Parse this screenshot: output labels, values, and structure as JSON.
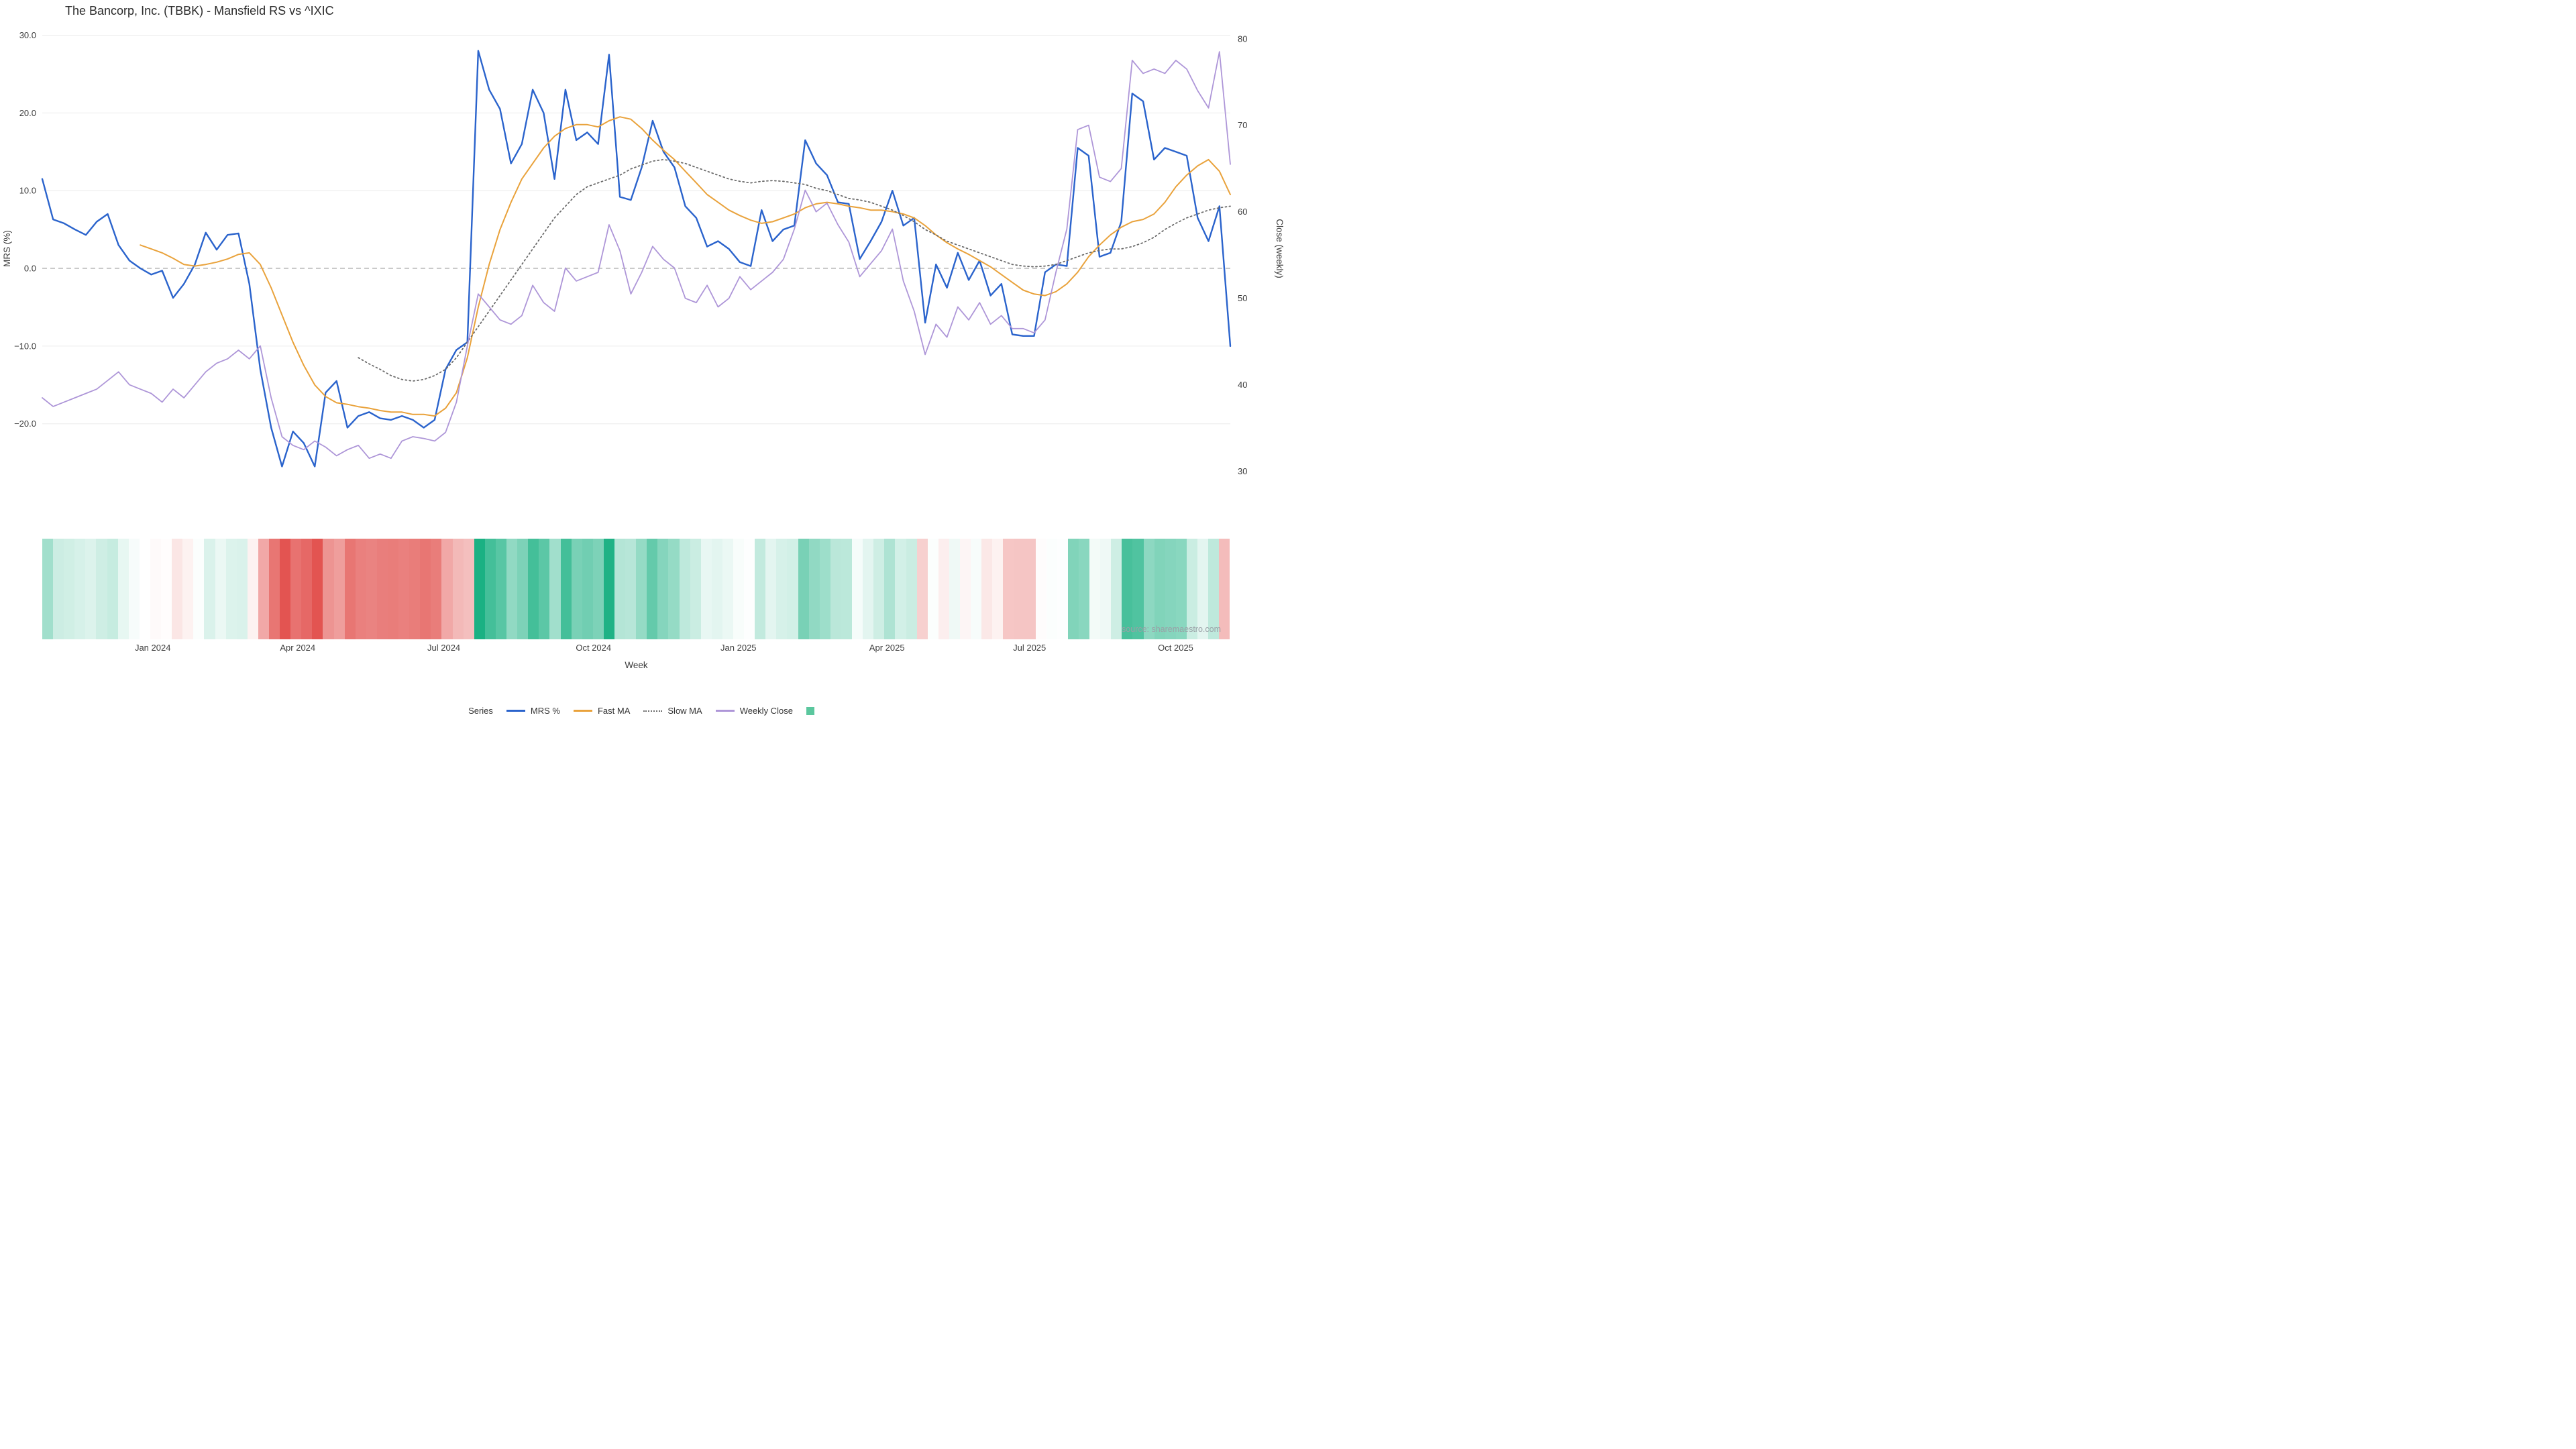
{
  "title": "The Bancorp, Inc. (TBBK) - Mansfield RS vs ^IXIC",
  "source": "source: sharemaestro.com",
  "legend": {
    "label": "Series",
    "items": [
      {
        "name": "MRS %",
        "type": "line",
        "color": "#2a63cc"
      },
      {
        "name": "Fast MA",
        "type": "line",
        "color": "#e9a23b"
      },
      {
        "name": "Slow MA",
        "type": "dashed-line",
        "color": "#6b6b6b"
      },
      {
        "name": "Weekly Close",
        "type": "line",
        "color": "#ae96d8"
      },
      {
        "name": "",
        "type": "square",
        "color": "#5bc79e"
      }
    ]
  },
  "chart_data": {
    "type": "line",
    "title": "The Bancorp, Inc. (TBBK) - Mansfield RS vs ^IXIC",
    "xlabel": "Week",
    "grid": "horizontal",
    "zero_line": true,
    "axes": {
      "left": {
        "label": "MRS (%)",
        "range": [
          -25.9,
          31.0
        ],
        "ticks": [
          {
            "text": "30.0",
            "v": 30
          },
          {
            "text": "20.0",
            "v": 20
          },
          {
            "text": "10.0",
            "v": 10
          },
          {
            "text": "0.0",
            "v": 0
          },
          {
            "text": "−10.0",
            "v": -10
          },
          {
            "text": "−20.0",
            "v": -20
          }
        ]
      },
      "right": {
        "label": "Close (weekly)",
        "range": [
          30.2,
          81.3
        ],
        "ticks": [
          {
            "text": "80",
            "v": 80
          },
          {
            "text": "70",
            "v": 70
          },
          {
            "text": "60",
            "v": 60
          },
          {
            "text": "50",
            "v": 50
          },
          {
            "text": "40",
            "v": 40
          },
          {
            "text": "30",
            "v": 30
          }
        ]
      },
      "x": {
        "ticks": [
          {
            "text": "Jan 2024",
            "pos": 0.093
          },
          {
            "text": "Apr 2024",
            "pos": 0.215
          },
          {
            "text": "Jul 2024",
            "pos": 0.338
          },
          {
            "text": "Oct 2024",
            "pos": 0.464
          },
          {
            "text": "Jan 2025",
            "pos": 0.586
          },
          {
            "text": "Apr 2025",
            "pos": 0.711
          },
          {
            "text": "Jul 2025",
            "pos": 0.831
          },
          {
            "text": "Oct 2025",
            "pos": 0.954
          }
        ]
      }
    },
    "series": [
      {
        "name": "MRS %",
        "axis": "left",
        "color": "#2a63cc",
        "style": "solid",
        "width": 2.4,
        "values": [
          11.5,
          6.3,
          5.8,
          5.0,
          4.3,
          6.0,
          7.0,
          3.0,
          1.0,
          0.0,
          -0.8,
          -0.3,
          -3.8,
          -2.0,
          0.5,
          4.6,
          2.4,
          4.3,
          4.5,
          -2.0,
          -13.0,
          -20.5,
          -25.5,
          -21.0,
          -22.5,
          -25.5,
          -16.0,
          -14.5,
          -20.5,
          -19.0,
          -18.5,
          -19.3,
          -19.5,
          -19.0,
          -19.5,
          -20.5,
          -19.5,
          -13.0,
          -10.5,
          -9.5,
          28.0,
          23.0,
          20.5,
          13.5,
          16.0,
          23.0,
          20.0,
          11.5,
          23.0,
          16.5,
          17.5,
          16.0,
          27.5,
          9.2,
          8.8,
          13.0,
          19.0,
          15.0,
          13.0,
          8.0,
          6.5,
          2.8,
          3.5,
          2.5,
          0.8,
          0.3,
          7.5,
          3.5,
          5.0,
          5.5,
          16.5,
          13.5,
          12.0,
          8.5,
          8.3,
          1.2,
          3.5,
          6.0,
          10.0,
          5.5,
          6.5,
          -7.0,
          0.5,
          -2.5,
          2.0,
          -1.5,
          1.0,
          -3.5,
          -2.0,
          -8.5,
          -8.7,
          -8.7,
          -0.5,
          0.5,
          0.3,
          15.5,
          14.5,
          1.5,
          2.0,
          6.0,
          22.5,
          21.5,
          14.0,
          15.5,
          15.0,
          14.5,
          6.5,
          3.5,
          8.0,
          -10.0
        ]
      },
      {
        "name": "Fast MA",
        "axis": "left",
        "color": "#e9a23b",
        "style": "solid",
        "width": 2,
        "values": [
          null,
          null,
          null,
          null,
          null,
          null,
          null,
          null,
          null,
          3.0,
          2.5,
          2.0,
          1.3,
          0.5,
          0.3,
          0.5,
          0.8,
          1.2,
          1.8,
          2.0,
          0.5,
          -2.5,
          -6.0,
          -9.5,
          -12.5,
          -15.0,
          -16.5,
          -17.3,
          -17.5,
          -17.8,
          -18.0,
          -18.3,
          -18.5,
          -18.5,
          -18.8,
          -18.8,
          -19.0,
          -18.0,
          -16.0,
          -11.5,
          -5.0,
          0.5,
          5.0,
          8.5,
          11.5,
          13.5,
          15.5,
          17.0,
          18.0,
          18.5,
          18.5,
          18.2,
          19.0,
          19.5,
          19.2,
          18.0,
          16.5,
          15.2,
          14.0,
          12.5,
          11.0,
          9.5,
          8.5,
          7.5,
          6.8,
          6.2,
          5.8,
          6.0,
          6.5,
          7.0,
          7.8,
          8.3,
          8.5,
          8.3,
          8.0,
          7.8,
          7.5,
          7.5,
          7.3,
          7.0,
          6.5,
          5.5,
          4.3,
          3.3,
          2.5,
          1.8,
          1.0,
          0.2,
          -0.8,
          -1.8,
          -2.8,
          -3.3,
          -3.5,
          -3.0,
          -2.0,
          -0.5,
          1.5,
          3.0,
          4.3,
          5.3,
          6.0,
          6.3,
          7.0,
          8.5,
          10.5,
          12.0,
          13.2,
          14.0,
          12.5,
          9.5
        ]
      },
      {
        "name": "Slow MA",
        "axis": "left",
        "color": "#6b6b6b",
        "style": "dotted",
        "width": 1.8,
        "values": [
          null,
          null,
          null,
          null,
          null,
          null,
          null,
          null,
          null,
          null,
          null,
          null,
          null,
          null,
          null,
          null,
          null,
          null,
          null,
          null,
          null,
          null,
          null,
          null,
          null,
          null,
          null,
          null,
          null,
          -11.5,
          -12.3,
          -13.0,
          -13.8,
          -14.3,
          -14.5,
          -14.3,
          -13.8,
          -13.0,
          -11.5,
          -9.5,
          -7.5,
          -5.5,
          -3.5,
          -1.5,
          0.5,
          2.5,
          4.5,
          6.5,
          8.0,
          9.5,
          10.5,
          11.0,
          11.5,
          12.0,
          12.8,
          13.3,
          13.8,
          14.0,
          13.8,
          13.5,
          13.0,
          12.5,
          12.0,
          11.5,
          11.2,
          11.0,
          11.2,
          11.3,
          11.2,
          11.0,
          10.8,
          10.3,
          10.0,
          9.5,
          9.0,
          8.8,
          8.5,
          8.0,
          7.5,
          6.8,
          6.0,
          5.0,
          4.3,
          3.5,
          3.0,
          2.5,
          2.0,
          1.5,
          1.0,
          0.5,
          0.3,
          0.2,
          0.3,
          0.5,
          1.0,
          1.5,
          2.0,
          2.3,
          2.5,
          2.5,
          2.8,
          3.3,
          4.0,
          5.0,
          5.8,
          6.5,
          7.0,
          7.5,
          7.8,
          8.0
        ]
      },
      {
        "name": "Weekly Close",
        "axis": "right",
        "color": "#ae96d8",
        "style": "solid",
        "width": 1.8,
        "values": [
          38.5,
          37.5,
          38.0,
          38.5,
          39.0,
          39.5,
          40.5,
          41.5,
          40.0,
          39.5,
          39.0,
          38.0,
          39.5,
          38.5,
          40.0,
          41.5,
          42.5,
          43.0,
          44.0,
          43.0,
          44.5,
          38.5,
          34.0,
          33.0,
          32.5,
          33.5,
          32.8,
          31.8,
          32.5,
          33.0,
          31.5,
          32.0,
          31.5,
          33.5,
          34.0,
          33.8,
          33.5,
          34.5,
          38.0,
          44.5,
          50.5,
          49.0,
          47.5,
          47.0,
          48.0,
          51.5,
          49.5,
          48.5,
          53.5,
          52.0,
          52.5,
          53.0,
          58.5,
          55.5,
          50.5,
          53.0,
          56.0,
          54.5,
          53.5,
          50.0,
          49.5,
          51.5,
          49.0,
          50.0,
          52.5,
          51.0,
          52.0,
          53.0,
          54.5,
          58.0,
          62.5,
          60.0,
          61.0,
          58.5,
          56.5,
          52.5,
          54.0,
          55.5,
          58.0,
          52.0,
          48.5,
          43.5,
          47.0,
          45.5,
          49.0,
          47.5,
          49.5,
          47.0,
          48.0,
          46.5,
          46.5,
          46.0,
          47.5,
          53.0,
          58.0,
          69.5,
          70.0,
          64.0,
          63.5,
          65.0,
          77.5,
          76.0,
          76.5,
          76.0,
          77.5,
          76.5,
          74.0,
          72.0,
          78.5,
          65.5
        ]
      }
    ],
    "heatmap": {
      "source_series": "MRS %",
      "positive_color": "#1bb183",
      "negative_color": "#e2514e",
      "max_positive": 28,
      "max_negative": 26
    }
  }
}
